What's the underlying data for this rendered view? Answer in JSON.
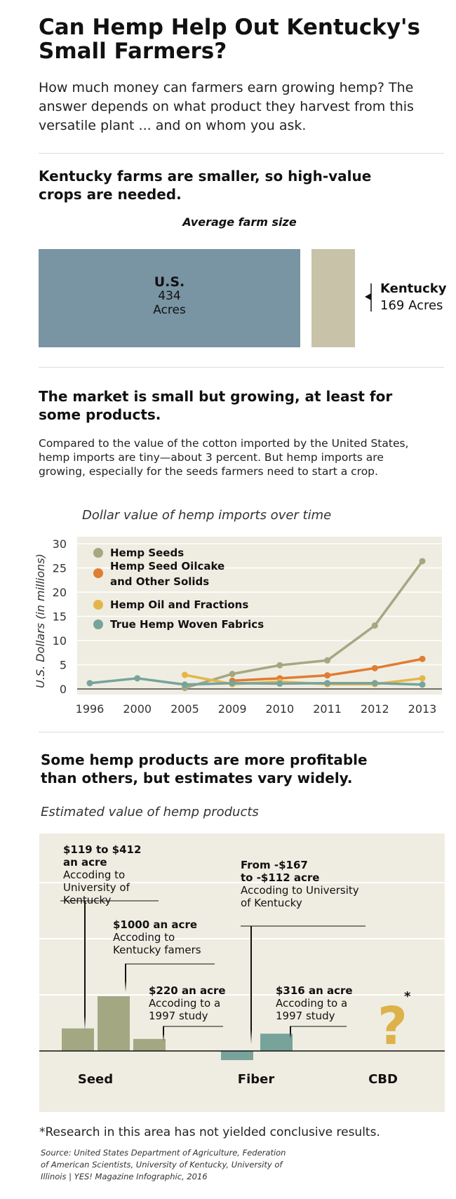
{
  "title": "Can Hemp Help Out Kentucky's Small Farmers?",
  "intro": "How much money can farmers earn growing hemp? The answer depends on what product they harvest from this versatile plant ... and on whom you ask.",
  "section1": {
    "heading": "Kentucky farms are smaller, so high-value crops are needed.",
    "chart_title": "Average farm size",
    "us_label": "U.S.",
    "us_value": "434",
    "us_unit": "Acres",
    "ky_label": "Kentucky",
    "ky_value_text": "169 Acres"
  },
  "section2": {
    "heading": "The market is small but growing, at least for some products.",
    "body": "Compared to the value of the cotton imported by the United States, hemp imports are tiny—about 3 percent. But hemp imports are growing, especially for the seeds farmers need to start a crop.",
    "chart_title": "Dollar value of hemp imports over time"
  },
  "section3": {
    "heading": "Some hemp products are more profitable than others, but estimates vary widely.",
    "chart_title": "Estimated value of hemp products",
    "annotations": {
      "seed_uk_bold": "$119 to $412 an acre",
      "seed_uk_text": "Accoding to University of Kentucky",
      "seed_farmers_bold": "$1000 an acre",
      "seed_farmers_text": "Accoding to Kentucky famers",
      "seed_1997_bold": "$220 an acre",
      "seed_1997_text": "Accoding to a 1997 study",
      "fiber_uk_bold": "From -$167 to -$112 acre",
      "fiber_uk_text": "Accoding to University of Kentucky",
      "fiber_1997_bold": "$316 an acre",
      "fiber_1997_text": "Accoding to a 1997 study",
      "cbd_mark": "?",
      "cbd_star": "*"
    },
    "categories": [
      "Seed",
      "Fiber",
      "CBD"
    ]
  },
  "footnote": "*Research in this area has not yielded conclusive results.",
  "source": "Source: United States Department of Agriculture, Federation of American Scientists, University of Kentucky, University of Illinois | YES! Magazine Infographic, 2016",
  "colors": {
    "us_bar": "#7994a3",
    "ky_bar": "#c8c2a8",
    "panel": "#efede1",
    "seeds": "#a3a883",
    "oilcake": "#e07c33",
    "oil": "#e4b64a",
    "fabrics": "#77a39b"
  },
  "chart_data": [
    {
      "type": "bar",
      "title": "Average farm size",
      "categories": [
        "U.S.",
        "Kentucky"
      ],
      "values": [
        434,
        169
      ],
      "unit": "Acres"
    },
    {
      "type": "line",
      "title": "Dollar value of hemp imports over time",
      "ylabel": "U.S. Dollars (in millions)",
      "x": [
        "1996",
        "2000",
        "2005",
        "2009",
        "2010",
        "2011",
        "2012",
        "2013"
      ],
      "ylim": [
        0,
        30
      ],
      "yticks": [
        0,
        5,
        10,
        15,
        20,
        25,
        30
      ],
      "grid": true,
      "legend": "top-left",
      "series": [
        {
          "name": "Hemp Seeds",
          "color": "#a3a883",
          "values": [
            null,
            null,
            0.2,
            3.1,
            4.9,
            5.9,
            13.1,
            26.4
          ]
        },
        {
          "name": "Hemp Seed Oilcake and Other Solids",
          "color": "#e07c33",
          "values": [
            null,
            null,
            null,
            1.7,
            2.2,
            2.8,
            4.3,
            6.2
          ]
        },
        {
          "name": "Hemp Oil and Fractions",
          "color": "#e4b64a",
          "values": [
            null,
            null,
            2.9,
            1.0,
            1.5,
            1.0,
            1.0,
            2.2
          ]
        },
        {
          "name": "True Hemp Woven Fabrics",
          "color": "#77a39b",
          "values": [
            1.2,
            2.2,
            0.9,
            1.2,
            1.1,
            1.2,
            1.2,
            0.9
          ]
        }
      ]
    },
    {
      "type": "bar",
      "title": "Estimated value of hemp products",
      "categories": [
        "Seed",
        "Fiber",
        "CBD"
      ],
      "series": [
        {
          "name": "University of Kentucky",
          "values": {
            "Seed": 412,
            "Fiber": -167
          }
        },
        {
          "name": "Kentucky famers",
          "values": {
            "Seed": 1000
          }
        },
        {
          "name": "a 1997 study",
          "values": {
            "Seed": 220,
            "Fiber": 316
          }
        }
      ],
      "unit": "dollars per acre"
    }
  ]
}
